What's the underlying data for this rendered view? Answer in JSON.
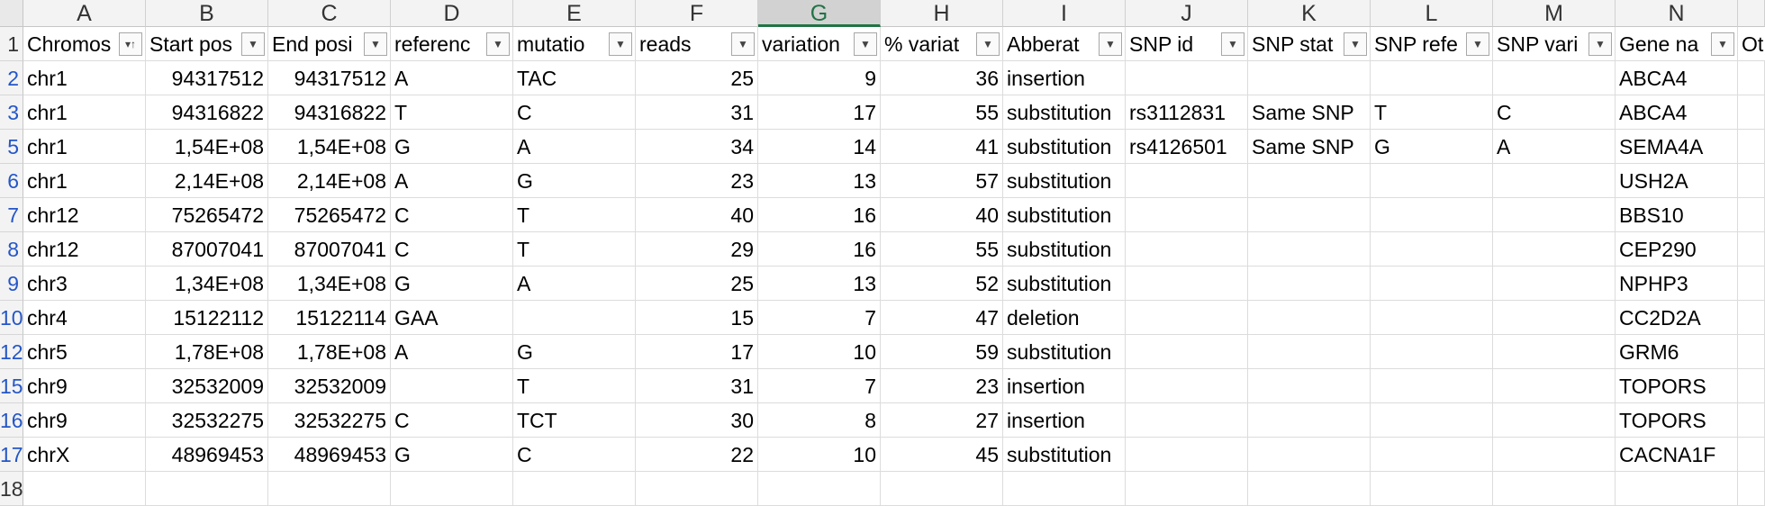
{
  "sheet": {
    "selected_column": "G",
    "columns": [
      "A",
      "B",
      "C",
      "D",
      "E",
      "F",
      "G",
      "H",
      "I",
      "J",
      "K",
      "L",
      "M",
      "N",
      ""
    ],
    "headers": [
      "Chromos",
      "Start pos",
      "End posi",
      "referenc",
      "mutatio",
      "reads",
      "variation",
      "% variat",
      "Abberat",
      "SNP id",
      "SNP stat",
      "SNP refe",
      "SNP vari",
      "Gene na",
      "Ot"
    ],
    "header_filters": [
      "sort-desc-filter",
      "filter",
      "filter",
      "filter",
      "filter",
      "filter",
      "filter",
      "filter",
      "filter",
      "filter",
      "filter",
      "filter",
      "filter",
      "filter",
      ""
    ],
    "rows": [
      {
        "num": "1",
        "cells": []
      },
      {
        "num": "2",
        "cells": [
          "chr1",
          "94317512",
          "94317512",
          "A",
          "TAC",
          "25",
          "9",
          "36",
          "insertion",
          "",
          "",
          "",
          "",
          "ABCA4",
          ""
        ]
      },
      {
        "num": "3",
        "cells": [
          "chr1",
          "94316822",
          "94316822",
          "T",
          "C",
          "31",
          "17",
          "55",
          "substitution",
          "rs3112831",
          "Same SNP",
          "T",
          "C",
          "ABCA4",
          ""
        ]
      },
      {
        "num": "5",
        "cells": [
          "chr1",
          "1,54E+08",
          "1,54E+08",
          "G",
          "A",
          "34",
          "14",
          "41",
          "substitution",
          "rs4126501",
          "Same SNP",
          "G",
          "A",
          "SEMA4A",
          ""
        ]
      },
      {
        "num": "6",
        "cells": [
          "chr1",
          "2,14E+08",
          "2,14E+08",
          "A",
          "G",
          "23",
          "13",
          "57",
          "substitution",
          "",
          "",
          "",
          "",
          "USH2A",
          ""
        ]
      },
      {
        "num": "7",
        "cells": [
          "chr12",
          "75265472",
          "75265472",
          "C",
          "T",
          "40",
          "16",
          "40",
          "substitution",
          "",
          "",
          "",
          "",
          "BBS10",
          ""
        ]
      },
      {
        "num": "8",
        "cells": [
          "chr12",
          "87007041",
          "87007041",
          "C",
          "T",
          "29",
          "16",
          "55",
          "substitution",
          "",
          "",
          "",
          "",
          "CEP290",
          ""
        ]
      },
      {
        "num": "9",
        "cells": [
          "chr3",
          "1,34E+08",
          "1,34E+08",
          "G",
          "A",
          "25",
          "13",
          "52",
          "substitution",
          "",
          "",
          "",
          "",
          "NPHP3",
          ""
        ]
      },
      {
        "num": "10",
        "cells": [
          "chr4",
          "15122112",
          "15122114",
          "GAA",
          "",
          "15",
          "7",
          "47",
          "deletion",
          "",
          "",
          "",
          "",
          "CC2D2A",
          ""
        ]
      },
      {
        "num": "12",
        "cells": [
          "chr5",
          "1,78E+08",
          "1,78E+08",
          "A",
          "G",
          "17",
          "10",
          "59",
          "substitution",
          "",
          "",
          "",
          "",
          "GRM6",
          ""
        ]
      },
      {
        "num": "15",
        "cells": [
          "chr9",
          "32532009",
          "32532009",
          "",
          "T",
          "31",
          "7",
          "23",
          "insertion",
          "",
          "",
          "",
          "",
          "TOPORS",
          ""
        ]
      },
      {
        "num": "16",
        "cells": [
          "chr9",
          "32532275",
          "32532275",
          "C",
          "TCT",
          "30",
          "8",
          "27",
          "insertion",
          "",
          "",
          "",
          "",
          "TOPORS",
          ""
        ]
      },
      {
        "num": "17",
        "cells": [
          "chrX",
          "48969453",
          "48969453",
          "G",
          "C",
          "22",
          "10",
          "45",
          "substitution",
          "",
          "",
          "",
          "",
          "CACNA1F",
          ""
        ]
      },
      {
        "num": "18",
        "cells": []
      }
    ]
  }
}
